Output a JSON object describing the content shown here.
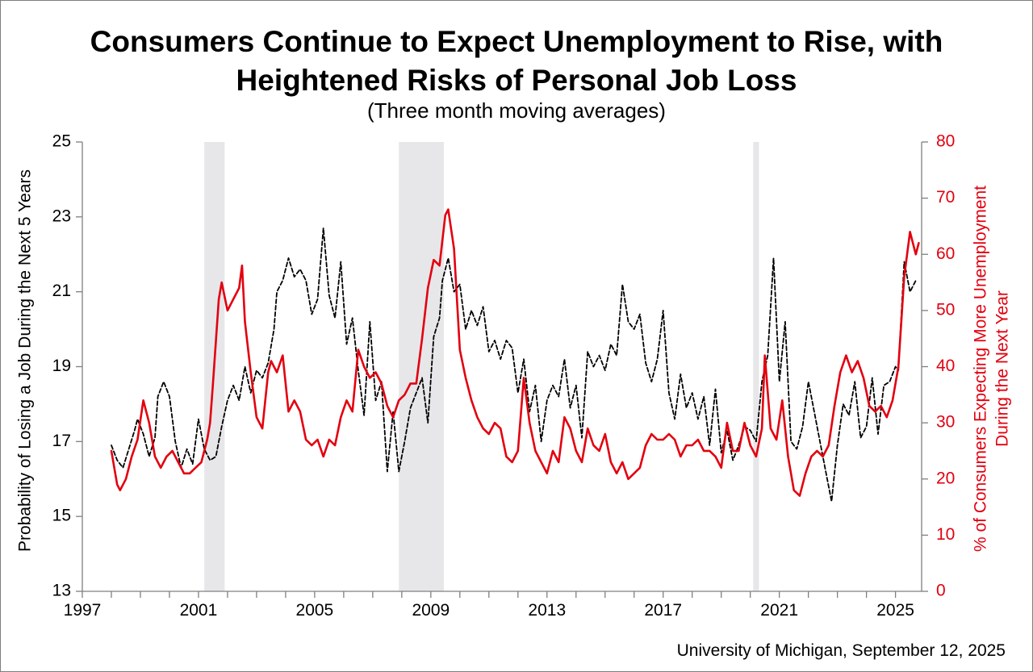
{
  "title_line1": "Consumers Continue to Expect Unemployment to Rise, with",
  "title_line2": "Heightened Risks of Personal Job Loss",
  "subtitle": "(Three month moving averages)",
  "footnote": "University of Michigan, September 12, 2025",
  "chart_data": {
    "type": "line",
    "x_ticks": [
      "1997",
      "2001",
      "2005",
      "2009",
      "2013",
      "2017",
      "2021",
      "2025"
    ],
    "xlim": [
      1997,
      2025.9
    ],
    "y_left": {
      "label": "Probability of Losing a Job During the Next 5 Years",
      "ticks": [
        "13",
        "15",
        "17",
        "19",
        "21",
        "23",
        "25"
      ],
      "lim": [
        13,
        25
      ]
    },
    "y_right": {
      "label_line1": "% of Consumers Expecting More Unemployment",
      "label_line2": "During the Next Year",
      "ticks": [
        "0",
        "10",
        "20",
        "30",
        "40",
        "50",
        "60",
        "70",
        "80"
      ],
      "lim": [
        0,
        80
      ]
    },
    "recessions": [
      [
        2001.2,
        2001.9
      ],
      [
        2007.9,
        2009.45
      ],
      [
        2020.1,
        2020.3
      ]
    ],
    "colors": {
      "job_loss": "#000000",
      "unemployment": "#e3000f",
      "recession": "#e7e7ea",
      "right_axis": "#e3000f"
    },
    "series": [
      {
        "axis": "left",
        "style": "dashed",
        "points": [
          [
            1998.0,
            16.9
          ],
          [
            1998.2,
            16.5
          ],
          [
            1998.4,
            16.3
          ],
          [
            1998.6,
            16.8
          ],
          [
            1998.8,
            17.3
          ],
          [
            1998.9,
            17.6
          ],
          [
            1999.1,
            17.2
          ],
          [
            1999.3,
            16.6
          ],
          [
            1999.5,
            17.1
          ],
          [
            1999.6,
            18.2
          ],
          [
            1999.8,
            18.6
          ],
          [
            2000.0,
            18.2
          ],
          [
            2000.2,
            17.0
          ],
          [
            2000.4,
            16.3
          ],
          [
            2000.6,
            16.8
          ],
          [
            2000.8,
            16.4
          ],
          [
            2001.0,
            17.6
          ],
          [
            2001.2,
            16.8
          ],
          [
            2001.4,
            16.5
          ],
          [
            2001.6,
            16.6
          ],
          [
            2001.8,
            17.4
          ],
          [
            2002.0,
            18.1
          ],
          [
            2002.2,
            18.5
          ],
          [
            2002.4,
            18.1
          ],
          [
            2002.6,
            19.0
          ],
          [
            2002.8,
            18.3
          ],
          [
            2003.0,
            18.9
          ],
          [
            2003.2,
            18.7
          ],
          [
            2003.4,
            19.1
          ],
          [
            2003.6,
            20.0
          ],
          [
            2003.7,
            21.0
          ],
          [
            2003.9,
            21.3
          ],
          [
            2004.1,
            21.9
          ],
          [
            2004.3,
            21.4
          ],
          [
            2004.5,
            21.6
          ],
          [
            2004.7,
            21.3
          ],
          [
            2004.9,
            20.4
          ],
          [
            2005.1,
            20.8
          ],
          [
            2005.3,
            22.7
          ],
          [
            2005.5,
            20.9
          ],
          [
            2005.7,
            20.3
          ],
          [
            2005.9,
            21.8
          ],
          [
            2006.1,
            19.6
          ],
          [
            2006.3,
            20.3
          ],
          [
            2006.5,
            18.9
          ],
          [
            2006.7,
            17.7
          ],
          [
            2006.9,
            20.2
          ],
          [
            2007.1,
            18.1
          ],
          [
            2007.3,
            18.6
          ],
          [
            2007.5,
            16.2
          ],
          [
            2007.7,
            17.8
          ],
          [
            2007.9,
            16.2
          ],
          [
            2008.1,
            17.0
          ],
          [
            2008.3,
            17.9
          ],
          [
            2008.5,
            18.3
          ],
          [
            2008.7,
            18.7
          ],
          [
            2008.9,
            17.5
          ],
          [
            2009.1,
            19.8
          ],
          [
            2009.3,
            20.3
          ],
          [
            2009.4,
            21.3
          ],
          [
            2009.6,
            21.9
          ],
          [
            2009.8,
            21.0
          ],
          [
            2010.0,
            21.2
          ],
          [
            2010.2,
            20.0
          ],
          [
            2010.4,
            20.5
          ],
          [
            2010.6,
            20.1
          ],
          [
            2010.8,
            20.6
          ],
          [
            2011.0,
            19.4
          ],
          [
            2011.2,
            19.7
          ],
          [
            2011.4,
            19.2
          ],
          [
            2011.6,
            19.7
          ],
          [
            2011.8,
            19.5
          ],
          [
            2012.0,
            18.3
          ],
          [
            2012.2,
            19.2
          ],
          [
            2012.4,
            17.8
          ],
          [
            2012.6,
            18.5
          ],
          [
            2012.8,
            17.0
          ],
          [
            2013.0,
            18.1
          ],
          [
            2013.2,
            18.5
          ],
          [
            2013.4,
            18.2
          ],
          [
            2013.6,
            19.2
          ],
          [
            2013.8,
            17.9
          ],
          [
            2014.0,
            18.5
          ],
          [
            2014.2,
            17.1
          ],
          [
            2014.4,
            19.4
          ],
          [
            2014.6,
            19.0
          ],
          [
            2014.8,
            19.3
          ],
          [
            2015.0,
            18.9
          ],
          [
            2015.2,
            19.6
          ],
          [
            2015.4,
            19.3
          ],
          [
            2015.6,
            21.2
          ],
          [
            2015.8,
            20.2
          ],
          [
            2016.0,
            20.0
          ],
          [
            2016.2,
            20.4
          ],
          [
            2016.4,
            19.1
          ],
          [
            2016.6,
            18.6
          ],
          [
            2016.8,
            19.2
          ],
          [
            2017.0,
            20.5
          ],
          [
            2017.2,
            18.3
          ],
          [
            2017.4,
            17.6
          ],
          [
            2017.6,
            18.8
          ],
          [
            2017.8,
            17.9
          ],
          [
            2018.0,
            18.3
          ],
          [
            2018.2,
            17.6
          ],
          [
            2018.4,
            18.2
          ],
          [
            2018.6,
            16.9
          ],
          [
            2018.8,
            18.4
          ],
          [
            2019.0,
            16.7
          ],
          [
            2019.2,
            17.3
          ],
          [
            2019.4,
            16.5
          ],
          [
            2019.6,
            16.9
          ],
          [
            2019.8,
            17.4
          ],
          [
            2020.0,
            17.3
          ],
          [
            2020.2,
            17.0
          ],
          [
            2020.4,
            18.6
          ],
          [
            2020.6,
            19.3
          ],
          [
            2020.8,
            21.9
          ],
          [
            2021.0,
            18.6
          ],
          [
            2021.2,
            20.2
          ],
          [
            2021.4,
            17.0
          ],
          [
            2021.6,
            16.8
          ],
          [
            2021.8,
            17.4
          ],
          [
            2022.0,
            18.6
          ],
          [
            2022.2,
            17.8
          ],
          [
            2022.4,
            17.0
          ],
          [
            2022.6,
            16.2
          ],
          [
            2022.8,
            15.4
          ],
          [
            2023.0,
            16.9
          ],
          [
            2023.2,
            18.0
          ],
          [
            2023.4,
            17.7
          ],
          [
            2023.6,
            18.6
          ],
          [
            2023.8,
            17.1
          ],
          [
            2024.0,
            17.4
          ],
          [
            2024.2,
            18.7
          ],
          [
            2024.4,
            17.2
          ],
          [
            2024.6,
            18.5
          ],
          [
            2024.8,
            18.6
          ],
          [
            2025.0,
            19.0
          ],
          [
            2025.1,
            18.9
          ],
          [
            2025.3,
            21.8
          ],
          [
            2025.5,
            21.0
          ],
          [
            2025.7,
            21.3
          ]
        ]
      },
      {
        "axis": "right",
        "style": "solid",
        "points": [
          [
            1998.0,
            25
          ],
          [
            1998.2,
            19
          ],
          [
            1998.3,
            18
          ],
          [
            1998.5,
            20
          ],
          [
            1998.7,
            24
          ],
          [
            1998.9,
            27
          ],
          [
            1999.1,
            34
          ],
          [
            1999.3,
            30
          ],
          [
            1999.5,
            24
          ],
          [
            1999.7,
            22
          ],
          [
            1999.9,
            24
          ],
          [
            2000.1,
            25
          ],
          [
            2000.3,
            23
          ],
          [
            2000.5,
            21
          ],
          [
            2000.7,
            21
          ],
          [
            2000.9,
            22
          ],
          [
            2001.1,
            23
          ],
          [
            2001.3,
            27
          ],
          [
            2001.4,
            30
          ],
          [
            2001.5,
            37
          ],
          [
            2001.7,
            52
          ],
          [
            2001.8,
            55
          ],
          [
            2002.0,
            50
          ],
          [
            2002.2,
            52
          ],
          [
            2002.4,
            54
          ],
          [
            2002.5,
            58
          ],
          [
            2002.6,
            48
          ],
          [
            2002.8,
            39
          ],
          [
            2003.0,
            31
          ],
          [
            2003.2,
            29
          ],
          [
            2003.4,
            39
          ],
          [
            2003.5,
            41
          ],
          [
            2003.7,
            39
          ],
          [
            2003.9,
            42
          ],
          [
            2004.1,
            32
          ],
          [
            2004.3,
            34
          ],
          [
            2004.5,
            32
          ],
          [
            2004.7,
            27
          ],
          [
            2004.9,
            26
          ],
          [
            2005.1,
            27
          ],
          [
            2005.3,
            24
          ],
          [
            2005.5,
            27
          ],
          [
            2005.7,
            26
          ],
          [
            2005.9,
            31
          ],
          [
            2006.1,
            34
          ],
          [
            2006.3,
            32
          ],
          [
            2006.5,
            43
          ],
          [
            2006.7,
            40
          ],
          [
            2006.9,
            38
          ],
          [
            2007.1,
            39
          ],
          [
            2007.3,
            37
          ],
          [
            2007.5,
            33
          ],
          [
            2007.7,
            31
          ],
          [
            2007.9,
            34
          ],
          [
            2008.1,
            35
          ],
          [
            2008.3,
            37
          ],
          [
            2008.5,
            37
          ],
          [
            2008.7,
            45
          ],
          [
            2008.9,
            54
          ],
          [
            2009.1,
            59
          ],
          [
            2009.3,
            58
          ],
          [
            2009.5,
            67
          ],
          [
            2009.6,
            68
          ],
          [
            2009.8,
            61
          ],
          [
            2010.0,
            43
          ],
          [
            2010.2,
            38
          ],
          [
            2010.4,
            34
          ],
          [
            2010.6,
            31
          ],
          [
            2010.8,
            29
          ],
          [
            2011.0,
            28
          ],
          [
            2011.2,
            30
          ],
          [
            2011.4,
            29
          ],
          [
            2011.6,
            24
          ],
          [
            2011.8,
            23
          ],
          [
            2012.0,
            25
          ],
          [
            2012.2,
            38
          ],
          [
            2012.4,
            30
          ],
          [
            2012.6,
            25
          ],
          [
            2012.8,
            23
          ],
          [
            2013.0,
            21
          ],
          [
            2013.2,
            25
          ],
          [
            2013.4,
            23
          ],
          [
            2013.6,
            31
          ],
          [
            2013.8,
            29
          ],
          [
            2014.0,
            25
          ],
          [
            2014.2,
            23
          ],
          [
            2014.4,
            29
          ],
          [
            2014.6,
            26
          ],
          [
            2014.8,
            25
          ],
          [
            2015.0,
            28
          ],
          [
            2015.2,
            23
          ],
          [
            2015.4,
            21
          ],
          [
            2015.6,
            23
          ],
          [
            2015.8,
            20
          ],
          [
            2016.0,
            21
          ],
          [
            2016.2,
            22
          ],
          [
            2016.4,
            26
          ],
          [
            2016.6,
            28
          ],
          [
            2016.8,
            27
          ],
          [
            2017.0,
            27
          ],
          [
            2017.2,
            28
          ],
          [
            2017.4,
            27
          ],
          [
            2017.6,
            24
          ],
          [
            2017.8,
            26
          ],
          [
            2018.0,
            26
          ],
          [
            2018.2,
            27
          ],
          [
            2018.4,
            25
          ],
          [
            2018.6,
            25
          ],
          [
            2018.8,
            24
          ],
          [
            2019.0,
            22
          ],
          [
            2019.2,
            30
          ],
          [
            2019.4,
            25
          ],
          [
            2019.6,
            25
          ],
          [
            2019.8,
            30
          ],
          [
            2020.0,
            26
          ],
          [
            2020.2,
            24
          ],
          [
            2020.4,
            29
          ],
          [
            2020.5,
            42
          ],
          [
            2020.7,
            29
          ],
          [
            2020.9,
            27
          ],
          [
            2021.1,
            34
          ],
          [
            2021.3,
            24
          ],
          [
            2021.5,
            18
          ],
          [
            2021.7,
            17
          ],
          [
            2021.9,
            21
          ],
          [
            2022.1,
            24
          ],
          [
            2022.3,
            25
          ],
          [
            2022.5,
            24
          ],
          [
            2022.7,
            26
          ],
          [
            2022.9,
            33
          ],
          [
            2023.1,
            39
          ],
          [
            2023.3,
            42
          ],
          [
            2023.5,
            39
          ],
          [
            2023.7,
            41
          ],
          [
            2023.9,
            38
          ],
          [
            2024.1,
            33
          ],
          [
            2024.3,
            32
          ],
          [
            2024.5,
            33
          ],
          [
            2024.7,
            31
          ],
          [
            2024.9,
            34
          ],
          [
            2025.1,
            40
          ],
          [
            2025.3,
            56
          ],
          [
            2025.5,
            64
          ],
          [
            2025.7,
            60
          ],
          [
            2025.8,
            62
          ]
        ]
      }
    ]
  }
}
